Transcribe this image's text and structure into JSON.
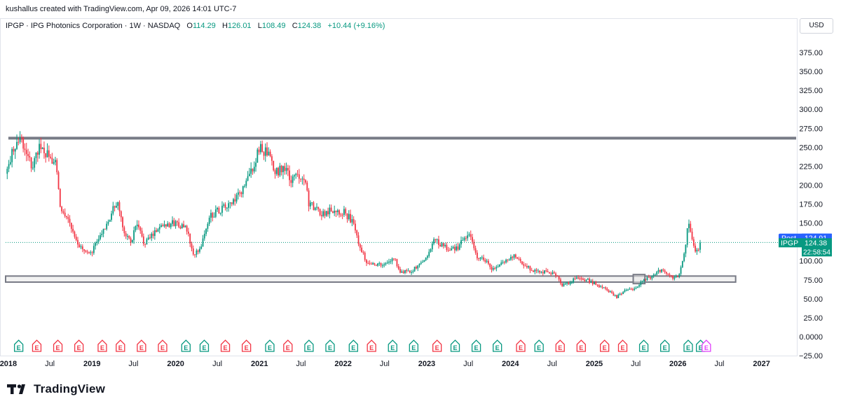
{
  "header": {
    "credit": "kushallus created with TradingView.com, Apr 09, 2026 14:01 UTC-7"
  },
  "legend": {
    "symbol": "IPGP · IPG Photonics Corporation · 1W · NASDAQ",
    "open_label": "O",
    "open": "114.29",
    "high_label": "H",
    "high": "126.01",
    "low_label": "L",
    "low": "108.49",
    "close_label": "C",
    "close": "124.38",
    "change": "+10.44 (+9.16%)"
  },
  "currency_button": "USD",
  "labels": {
    "post_tag": "Post",
    "post_price": "124.91",
    "symbol_tag": "IPGP",
    "last_price": "124.38",
    "countdown": "22:58:54"
  },
  "logo": {
    "text": "TradingView"
  },
  "colors": {
    "up": "#089981",
    "down": "#f23645",
    "post": "#2962ff",
    "level_line": "#787b86",
    "zone_fill": "#e8e8e8",
    "earnings_past": "#f23645",
    "earnings_green": "#089981",
    "earnings_future": "#e040fb"
  },
  "chart_data": {
    "type": "candlestick",
    "y_axis": {
      "range": [
        -25,
        400
      ],
      "ticks": [
        -25,
        0,
        25,
        50,
        75,
        100,
        125,
        150,
        175,
        200,
        225,
        250,
        275,
        300,
        325,
        350,
        375
      ],
      "tick_labels": [
        "−25.00",
        "0.0000",
        "25.00",
        "50.00",
        "75.00",
        "100.00",
        "125.00",
        "150.00",
        "175.00",
        "200.00",
        "225.00",
        "250.00",
        "275.00",
        "300.00",
        "325.00",
        "350.00",
        "375.00"
      ]
    },
    "x_axis": {
      "range": [
        "2017-12-20",
        "2027-06-01"
      ],
      "ticks": [
        {
          "date": "2018-01-01",
          "label": "2018",
          "bold": true
        },
        {
          "date": "2018-07-01",
          "label": "Jul",
          "bold": false
        },
        {
          "date": "2019-01-01",
          "label": "2019",
          "bold": true
        },
        {
          "date": "2019-07-01",
          "label": "Jul",
          "bold": false
        },
        {
          "date": "2020-01-01",
          "label": "2020",
          "bold": true
        },
        {
          "date": "2020-07-01",
          "label": "Jul",
          "bold": false
        },
        {
          "date": "2021-01-01",
          "label": "2021",
          "bold": true
        },
        {
          "date": "2021-07-01",
          "label": "Jul",
          "bold": false
        },
        {
          "date": "2022-01-01",
          "label": "2022",
          "bold": true
        },
        {
          "date": "2022-07-01",
          "label": "Jul",
          "bold": false
        },
        {
          "date": "2023-01-01",
          "label": "2023",
          "bold": true
        },
        {
          "date": "2023-07-01",
          "label": "Jul",
          "bold": false
        },
        {
          "date": "2024-01-01",
          "label": "2024",
          "bold": true
        },
        {
          "date": "2024-07-01",
          "label": "Jul",
          "bold": false
        },
        {
          "date": "2025-01-01",
          "label": "2025",
          "bold": true
        },
        {
          "date": "2025-07-01",
          "label": "Jul",
          "bold": false
        },
        {
          "date": "2026-01-01",
          "label": "2026",
          "bold": true
        },
        {
          "date": "2026-07-01",
          "label": "Jul",
          "bold": false
        },
        {
          "date": "2027-01-01",
          "label": "2027",
          "bold": true
        }
      ]
    },
    "price_path": [
      [
        "2017-12-20",
        215
      ],
      [
        "2018-01-20",
        245
      ],
      [
        "2018-03-01",
        258
      ],
      [
        "2018-04-15",
        225
      ],
      [
        "2018-05-20",
        252
      ],
      [
        "2018-06-20",
        240
      ],
      [
        "2018-07-25",
        230
      ],
      [
        "2018-08-20",
        162
      ],
      [
        "2018-09-20",
        158
      ],
      [
        "2018-10-15",
        130
      ],
      [
        "2018-11-01",
        120
      ],
      [
        "2018-12-20",
        108
      ],
      [
        "2019-01-20",
        122
      ],
      [
        "2019-03-20",
        158
      ],
      [
        "2019-04-20",
        178
      ],
      [
        "2019-05-20",
        140
      ],
      [
        "2019-06-20",
        125
      ],
      [
        "2019-07-15",
        148
      ],
      [
        "2019-08-20",
        122
      ],
      [
        "2019-09-20",
        135
      ],
      [
        "2019-11-01",
        148
      ],
      [
        "2020-01-10",
        150
      ],
      [
        "2020-02-20",
        140
      ],
      [
        "2020-03-20",
        105
      ],
      [
        "2020-04-20",
        120
      ],
      [
        "2020-06-01",
        160
      ],
      [
        "2020-07-15",
        168
      ],
      [
        "2020-09-01",
        175
      ],
      [
        "2020-10-01",
        185
      ],
      [
        "2020-11-15",
        210
      ],
      [
        "2021-01-05",
        250
      ],
      [
        "2021-02-10",
        238
      ],
      [
        "2021-03-10",
        215
      ],
      [
        "2021-04-15",
        225
      ],
      [
        "2021-05-20",
        205
      ],
      [
        "2021-06-20",
        215
      ],
      [
        "2021-07-20",
        208
      ],
      [
        "2021-08-05",
        175
      ],
      [
        "2021-10-01",
        162
      ],
      [
        "2021-11-15",
        168
      ],
      [
        "2022-01-05",
        165
      ],
      [
        "2022-02-10",
        152
      ],
      [
        "2022-03-10",
        125
      ],
      [
        "2022-04-10",
        100
      ],
      [
        "2022-05-20",
        96
      ],
      [
        "2022-07-01",
        94
      ],
      [
        "2022-08-10",
        104
      ],
      [
        "2022-09-10",
        85
      ],
      [
        "2022-11-01",
        88
      ],
      [
        "2022-12-20",
        100
      ],
      [
        "2023-02-05",
        128
      ],
      [
        "2023-03-10",
        120
      ],
      [
        "2023-04-10",
        115
      ],
      [
        "2023-05-20",
        118
      ],
      [
        "2023-06-10",
        130
      ],
      [
        "2023-07-01",
        136
      ],
      [
        "2023-08-10",
        105
      ],
      [
        "2023-09-10",
        102
      ],
      [
        "2023-10-20",
        88
      ],
      [
        "2023-12-10",
        100
      ],
      [
        "2024-01-20",
        108
      ],
      [
        "2024-02-20",
        96
      ],
      [
        "2024-04-10",
        88
      ],
      [
        "2024-06-10",
        85
      ],
      [
        "2024-07-20",
        82
      ],
      [
        "2024-08-10",
        68
      ],
      [
        "2024-09-20",
        72
      ],
      [
        "2024-10-20",
        80
      ],
      [
        "2024-11-20",
        76
      ],
      [
        "2024-12-20",
        72
      ],
      [
        "2025-02-20",
        62
      ],
      [
        "2025-04-10",
        52
      ],
      [
        "2025-05-10",
        60
      ],
      [
        "2025-06-10",
        62
      ],
      [
        "2025-07-10",
        68
      ],
      [
        "2025-08-10",
        75
      ],
      [
        "2025-09-15",
        80
      ],
      [
        "2025-10-20",
        88
      ],
      [
        "2025-11-20",
        80
      ],
      [
        "2025-12-20",
        76
      ],
      [
        "2026-01-10",
        85
      ],
      [
        "2026-02-01",
        112
      ],
      [
        "2026-02-15",
        150
      ],
      [
        "2026-03-01",
        138
      ],
      [
        "2026-03-15",
        110
      ],
      [
        "2026-03-30",
        114
      ],
      [
        "2026-04-09",
        124.38
      ]
    ],
    "horizontal_lines": [
      {
        "value": 262,
        "from": "2018-01-01",
        "to": "2027-06-01"
      }
    ],
    "zones": [
      {
        "from_value": 72,
        "to_value": 80,
        "from": "2017-12-20",
        "to": "2026-09-10"
      },
      {
        "from_value": 70,
        "to_value": 82,
        "from": "2025-06-20",
        "to": "2025-08-10"
      }
    ],
    "current_price_line": 124.38,
    "post_market_price": 124.91,
    "earnings_markers": [
      {
        "date": "2018-02-15",
        "color": "green",
        "label": "E"
      },
      {
        "date": "2018-05-05",
        "color": "red",
        "label": "E"
      },
      {
        "date": "2018-08-05",
        "color": "red",
        "label": "E"
      },
      {
        "date": "2018-11-05",
        "color": "red",
        "label": "E"
      },
      {
        "date": "2019-02-15",
        "color": "red",
        "label": "E"
      },
      {
        "date": "2019-05-05",
        "color": "red",
        "label": "E"
      },
      {
        "date": "2019-08-05",
        "color": "red",
        "label": "E"
      },
      {
        "date": "2019-11-05",
        "color": "red",
        "label": "E"
      },
      {
        "date": "2020-02-15",
        "color": "green",
        "label": "E"
      },
      {
        "date": "2020-05-05",
        "color": "green",
        "label": "E"
      },
      {
        "date": "2020-08-05",
        "color": "red",
        "label": "E"
      },
      {
        "date": "2020-11-05",
        "color": "red",
        "label": "E"
      },
      {
        "date": "2021-02-15",
        "color": "green",
        "label": "E"
      },
      {
        "date": "2021-05-05",
        "color": "red",
        "label": "E"
      },
      {
        "date": "2021-08-05",
        "color": "green",
        "label": "E"
      },
      {
        "date": "2021-11-05",
        "color": "green",
        "label": "E"
      },
      {
        "date": "2022-02-15",
        "color": "green",
        "label": "E"
      },
      {
        "date": "2022-05-05",
        "color": "red",
        "label": "E"
      },
      {
        "date": "2022-08-05",
        "color": "green",
        "label": "E"
      },
      {
        "date": "2022-11-05",
        "color": "green",
        "label": "E"
      },
      {
        "date": "2023-02-15",
        "color": "red",
        "label": "E"
      },
      {
        "date": "2023-05-05",
        "color": "green",
        "label": "E"
      },
      {
        "date": "2023-08-05",
        "color": "green",
        "label": "E"
      },
      {
        "date": "2023-11-05",
        "color": "green",
        "label": "E"
      },
      {
        "date": "2024-02-15",
        "color": "red",
        "label": "E"
      },
      {
        "date": "2024-05-05",
        "color": "green",
        "label": "E"
      },
      {
        "date": "2024-08-05",
        "color": "red",
        "label": "E"
      },
      {
        "date": "2024-11-05",
        "color": "red",
        "label": "E"
      },
      {
        "date": "2025-02-15",
        "color": "red",
        "label": "E"
      },
      {
        "date": "2025-05-05",
        "color": "red",
        "label": "E"
      },
      {
        "date": "2025-08-05",
        "color": "green",
        "label": "E"
      },
      {
        "date": "2025-11-05",
        "color": "green",
        "label": "E"
      },
      {
        "date": "2026-02-15",
        "color": "green",
        "label": "E"
      },
      {
        "date": "2026-04-10",
        "color": "green",
        "label": "E"
      },
      {
        "date": "2026-05-05",
        "color": "future",
        "label": "E"
      }
    ]
  }
}
